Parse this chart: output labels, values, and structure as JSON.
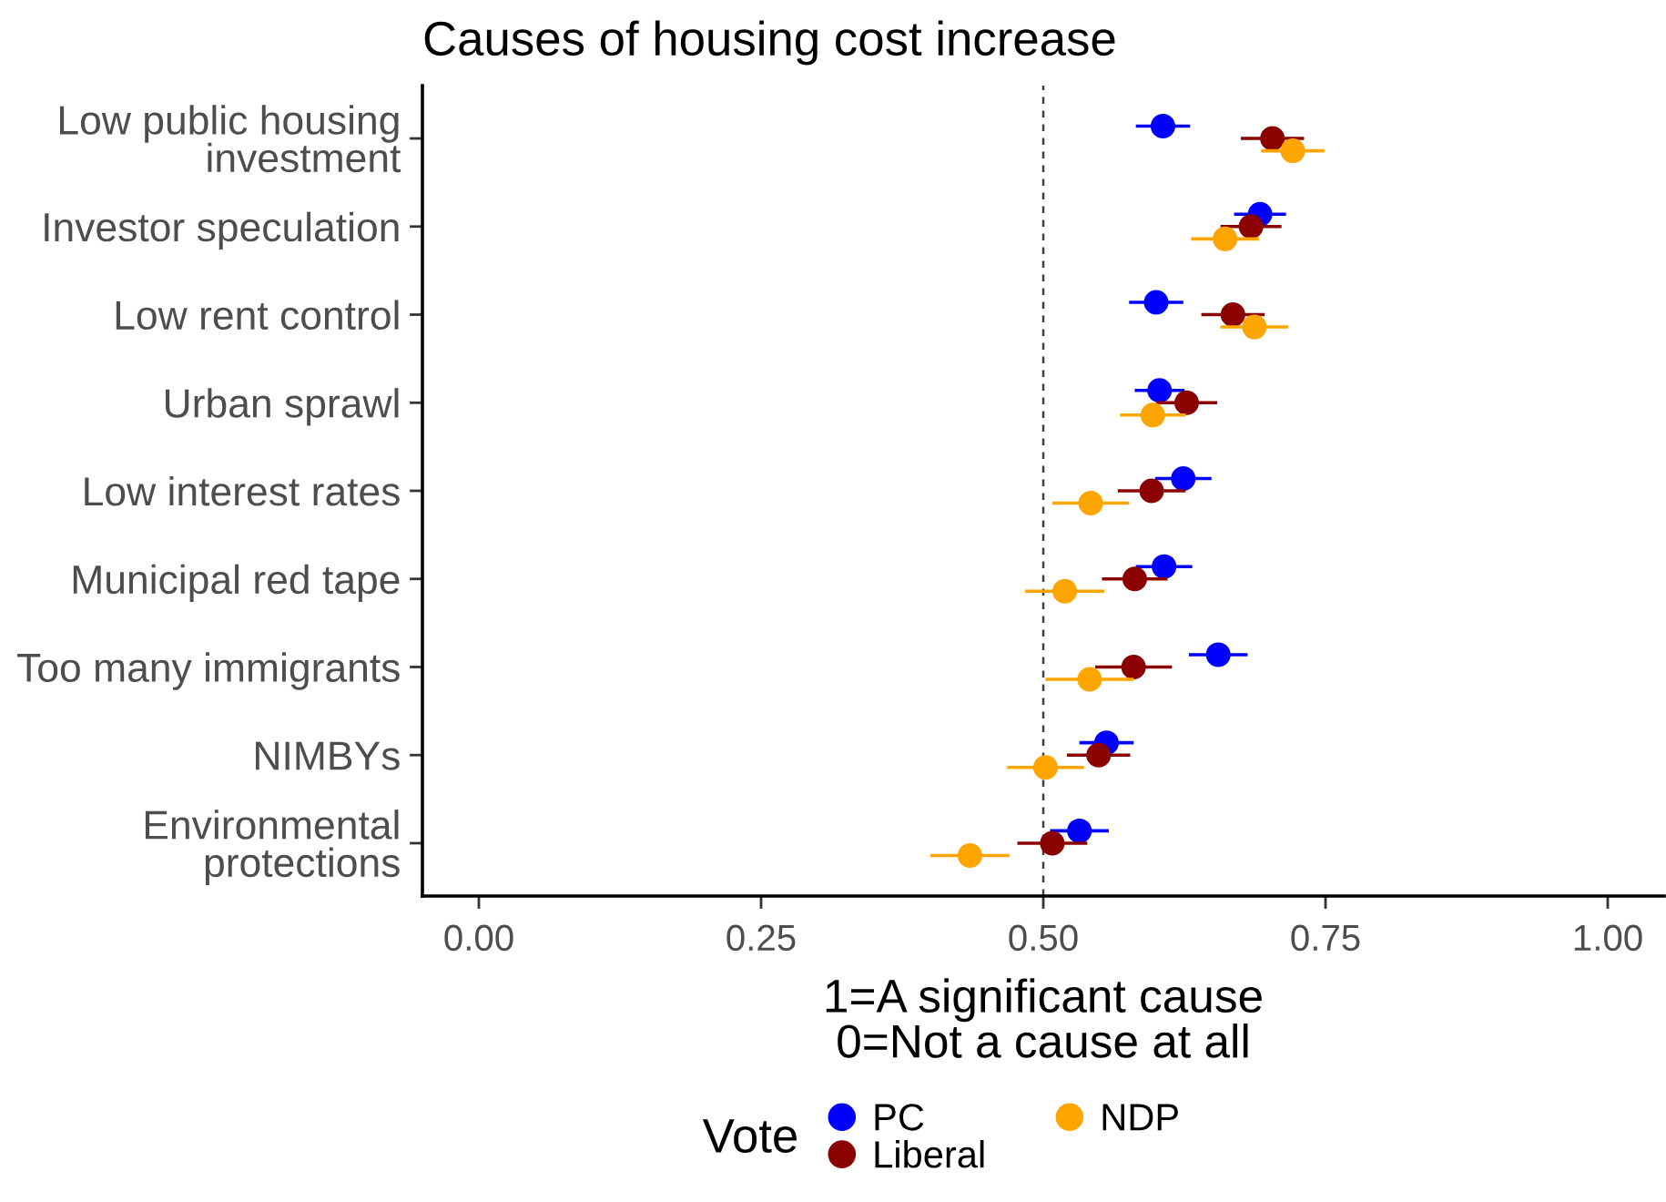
{
  "chart_data": {
    "type": "scatter",
    "title": "Causes of housing cost increase",
    "xlabel": "1=A significant cause\n0=Not a cause at all",
    "legend_title": "Vote",
    "orientation": "horizontal",
    "categories": [
      "Low public housing\ninvestment",
      "Investor speculation",
      "Low rent control",
      "Urban sprawl",
      "Low interest rates",
      "Municipal red tape",
      "Too many immigrants",
      "NIMBYs",
      "Environmental\nprotections"
    ],
    "series": [
      {
        "name": "PC",
        "color": "#0000ff",
        "values": [
          0.606,
          0.692,
          0.6,
          0.603,
          0.624,
          0.607,
          0.655,
          0.556,
          0.532
        ],
        "errors": [
          0.024,
          0.023,
          0.024,
          0.022,
          0.025,
          0.025,
          0.026,
          0.024,
          0.026
        ]
      },
      {
        "name": "Liberal",
        "color": "#8b0000",
        "values": [
          0.703,
          0.684,
          0.668,
          0.627,
          0.596,
          0.581,
          0.58,
          0.549,
          0.508
        ],
        "errors": [
          0.028,
          0.027,
          0.028,
          0.027,
          0.03,
          0.029,
          0.034,
          0.028,
          0.031
        ]
      },
      {
        "name": "NDP",
        "color": "#ffa500",
        "values": [
          0.721,
          0.661,
          0.687,
          0.597,
          0.542,
          0.519,
          0.541,
          0.502,
          0.435
        ],
        "errors": [
          0.028,
          0.03,
          0.03,
          0.029,
          0.034,
          0.035,
          0.039,
          0.034,
          0.035
        ]
      }
    ],
    "xlim": [
      -0.05,
      1.05
    ],
    "xticks": [
      {
        "value": 0,
        "label": "0.00"
      },
      0.25,
      {
        "value": 0.5,
        "label": "0.50"
      },
      0.75,
      {
        "value": 1,
        "label": "1.00"
      }
    ],
    "ref_lines": [
      {
        "axis": "x",
        "value": 0.5,
        "color": "#404040",
        "line_style": "dashed"
      }
    ],
    "marker": "circle",
    "legend": "bottom"
  }
}
